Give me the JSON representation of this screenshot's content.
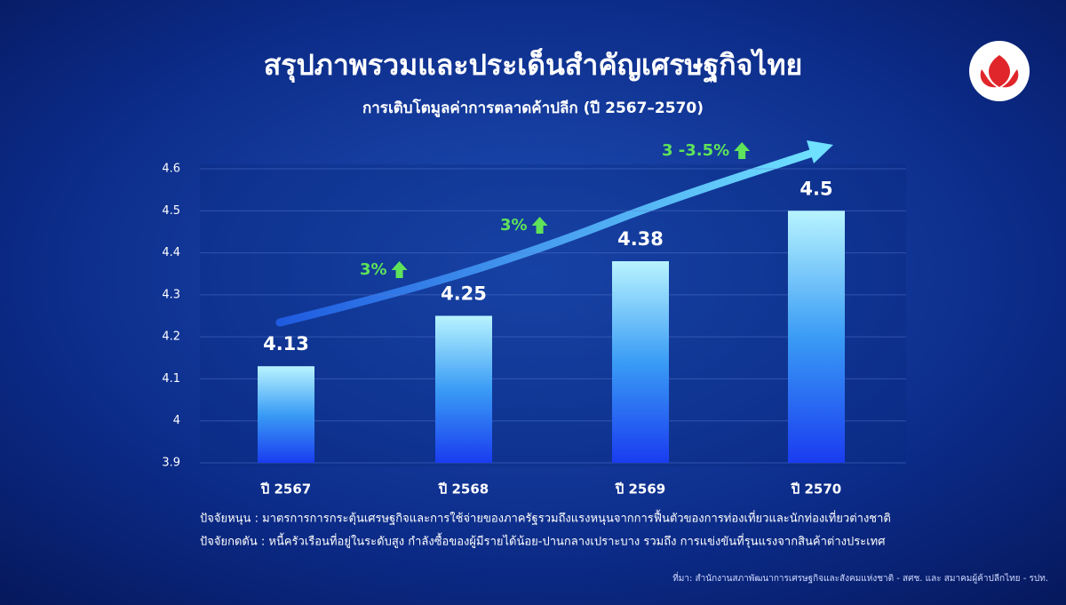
{
  "chart_data": {
    "type": "bar",
    "title": "สรุปภาพรวมและประเด็นสำคัญเศรษฐกิจไทย",
    "subtitle": "การเติบโตมูลค่าการตลาดค้าปลีก (ปี 2567–2570)",
    "categories": [
      "ปี 2567",
      "ปี 2568",
      "ปี 2569",
      "ปี 2570"
    ],
    "values": [
      4.13,
      4.25,
      4.38,
      4.5
    ],
    "ylim": [
      3.9,
      4.6
    ],
    "yticks": [
      3.9,
      4,
      4.1,
      4.2,
      4.3,
      4.4,
      4.5,
      4.6
    ],
    "grid": true,
    "annotations": [
      "3%",
      "3%",
      "3 -3.5%"
    ],
    "notes": [
      "ปัจจัยหนุน : มาตรการการกระตุ้นเศรษฐกิจและการใช้จ่ายของภาครัฐรวมถึงแรงหนุนจากการฟื้นตัวของการท่องเที่ยวและนักท่องเที่ยวต่างชาติ",
      "ปัจจัยกดดัน : หนี้ครัวเรือนที่อยู่ในระดับสูง กำลังซื้อของผู้มีรายได้น้อย-ปานกลางเปราะบาง รวมถึง การแข่งขันที่รุนแรงจากสินค้าต่างประเทศ"
    ],
    "source": "ที่มา: สำนักงานสภาพัฒนาการเศรษฐกิจและสังคมแห่งชาติ - สศช. และ สมาคมผู้ค้าปลีกไทย - รปท."
  }
}
